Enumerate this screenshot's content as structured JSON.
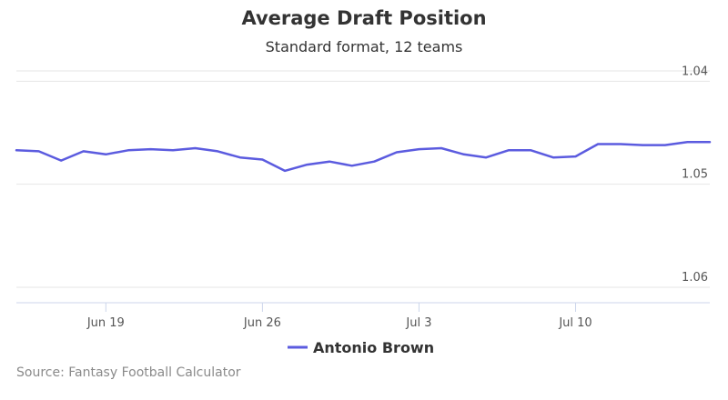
{
  "chart_data": {
    "type": "line",
    "title": "Average Draft Position",
    "subtitle": "Standard format, 12 teams",
    "credit": "Source: Fantasy Football Calculator",
    "y_axis": {
      "reversed": true,
      "ticks": [
        "1.04",
        "1.05",
        "1.06"
      ],
      "ylim": [
        1.039,
        1.0615
      ],
      "grid": true,
      "position": "right"
    },
    "x_axis": {
      "ticks": [
        "Jun 19",
        "Jun 26",
        "Jul 3",
        "Jul 10"
      ]
    },
    "legend": "bottom-center",
    "series": [
      {
        "name": "Antonio Brown",
        "color": "#5b5bdf",
        "x": [
          "2017-06-15",
          "2017-06-16",
          "2017-06-17",
          "2017-06-18",
          "2017-06-19",
          "2017-06-20",
          "2017-06-21",
          "2017-06-22",
          "2017-06-23",
          "2017-06-24",
          "2017-06-25",
          "2017-06-26",
          "2017-06-27",
          "2017-06-28",
          "2017-06-29",
          "2017-06-30",
          "2017-07-01",
          "2017-07-02",
          "2017-07-03",
          "2017-07-04",
          "2017-07-05",
          "2017-07-06",
          "2017-07-07",
          "2017-07-08",
          "2017-07-09",
          "2017-07-10",
          "2017-07-11",
          "2017-07-12",
          "2017-07-13",
          "2017-07-14",
          "2017-07-15",
          "2017-07-16"
        ],
        "values": [
          1.0467,
          1.0468,
          1.0477,
          1.0468,
          1.0471,
          1.0467,
          1.0466,
          1.0467,
          1.0465,
          1.0468,
          1.0474,
          1.0476,
          1.0487,
          1.0481,
          1.0478,
          1.0482,
          1.0478,
          1.0469,
          1.0466,
          1.0465,
          1.0471,
          1.0474,
          1.0467,
          1.0467,
          1.0474,
          1.0473,
          1.0461,
          1.0461,
          1.0462,
          1.0462,
          1.0459,
          1.0459
        ]
      }
    ]
  }
}
